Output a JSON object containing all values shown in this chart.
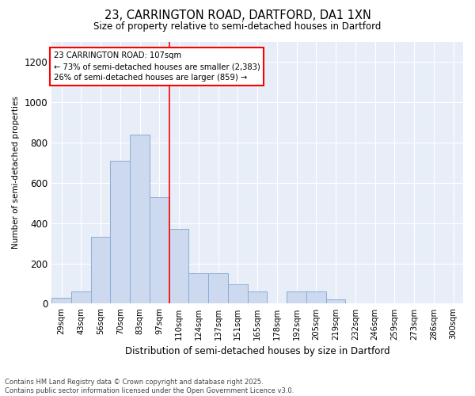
{
  "title": "23, CARRINGTON ROAD, DARTFORD, DA1 1XN",
  "subtitle": "Size of property relative to semi-detached houses in Dartford",
  "xlabel": "Distribution of semi-detached houses by size in Dartford",
  "ylabel": "Number of semi-detached properties",
  "categories": [
    "29sqm",
    "43sqm",
    "56sqm",
    "70sqm",
    "83sqm",
    "97sqm",
    "110sqm",
    "124sqm",
    "137sqm",
    "151sqm",
    "165sqm",
    "178sqm",
    "192sqm",
    "205sqm",
    "219sqm",
    "232sqm",
    "246sqm",
    "259sqm",
    "273sqm",
    "286sqm",
    "300sqm"
  ],
  "values": [
    30,
    60,
    330,
    710,
    840,
    530,
    370,
    150,
    150,
    95,
    60,
    0,
    60,
    60,
    20,
    0,
    0,
    0,
    0,
    0,
    0
  ],
  "bar_color": "#ccd9ee",
  "bar_edge_color": "#8aadd4",
  "highlight_index": 6,
  "annotation_text_line1": "23 CARRINGTON ROAD: 107sqm",
  "annotation_text_line2": "← 73% of semi-detached houses are smaller (2,383)",
  "annotation_text_line3": "26% of semi-detached houses are larger (859) →",
  "ylim": [
    0,
    1300
  ],
  "yticks": [
    0,
    200,
    400,
    600,
    800,
    1000,
    1200
  ],
  "bg_color": "#e8eef8",
  "footer_line1": "Contains HM Land Registry data © Crown copyright and database right 2025.",
  "footer_line2": "Contains public sector information licensed under the Open Government Licence v3.0."
}
